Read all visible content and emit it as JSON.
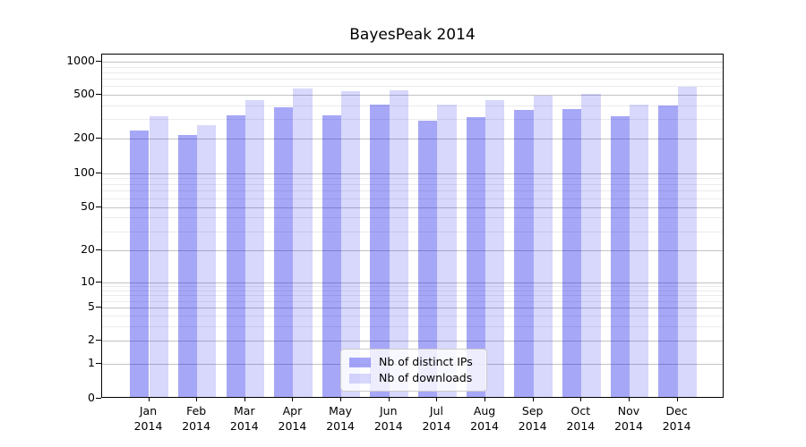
{
  "title": "BayesPeak 2014",
  "colors": {
    "distinct_ips": "rgba(10,10,235,0.36)",
    "downloads": "rgba(10,10,235,0.16)",
    "grid_major": "#c3c3c3",
    "grid_minor": "#ebebeb",
    "spine": "#000000"
  },
  "legend": {
    "items": [
      {
        "label": "Nb of distinct IPs",
        "color": "rgba(10,10,235,0.36)"
      },
      {
        "label": "Nb of downloads",
        "color": "rgba(10,10,235,0.16)"
      }
    ]
  },
  "y_axis": {
    "tick_labels": [
      "0",
      "1",
      "2",
      "5",
      "10",
      "20",
      "50",
      "100",
      "200",
      "500",
      "1000"
    ]
  },
  "x_axis": {
    "months": [
      "Jan",
      "Feb",
      "Mar",
      "Apr",
      "May",
      "Jun",
      "Jul",
      "Aug",
      "Sep",
      "Oct",
      "Nov",
      "Dec"
    ],
    "year": "2014"
  },
  "chart_data": {
    "type": "bar",
    "title": "BayesPeak 2014",
    "categories": [
      "Jan 2014",
      "Feb 2014",
      "Mar 2014",
      "Apr 2014",
      "May 2014",
      "Jun 2014",
      "Jul 2014",
      "Aug 2014",
      "Sep 2014",
      "Oct 2014",
      "Nov 2014",
      "Dec 2014"
    ],
    "series": [
      {
        "name": "Nb of distinct IPs",
        "color": "rgba(10,10,235,0.36)",
        "values": [
          232,
          213,
          322,
          381,
          320,
          402,
          285,
          307,
          355,
          362,
          315,
          392
        ]
      },
      {
        "name": "Nb of downloads",
        "color": "rgba(10,10,235,0.16)",
        "values": [
          316,
          260,
          435,
          560,
          534,
          542,
          397,
          441,
          484,
          503,
          397,
          581
        ]
      }
    ],
    "yscale": "symlog",
    "y_ticks": [
      0,
      1,
      2,
      5,
      10,
      20,
      50,
      100,
      200,
      500,
      1000
    ],
    "y_minor_ticks": [
      3,
      4,
      6,
      7,
      8,
      9,
      30,
      40,
      60,
      70,
      80,
      90,
      300,
      400,
      600,
      700,
      800,
      900
    ],
    "ylim": [
      0,
      1000
    ],
    "grid": "both",
    "legend_position": "lower center",
    "bar_layout": "paired side-by-side per month, bars start at 0"
  }
}
